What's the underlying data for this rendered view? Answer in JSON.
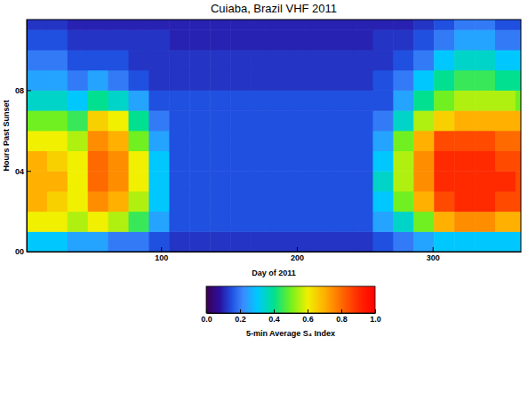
{
  "chart_data": {
    "type": "heatmap",
    "title": "Cuiaba, Brazil VHF 2011",
    "x_label": "Day of 2011",
    "y_label": "Hours Past Sunset",
    "xlim": [
      1,
      365
    ],
    "xticks": [
      100,
      200,
      300
    ],
    "ylim": [
      0,
      11.5
    ],
    "yticks": [
      {
        "value": 0,
        "label": "00"
      },
      {
        "value": 4,
        "label": "04"
      },
      {
        "value": 8,
        "label": "08"
      }
    ],
    "x_bins": [
      1,
      16,
      31,
      46,
      61,
      76,
      91,
      106,
      121,
      136,
      151,
      166,
      181,
      196,
      211,
      226,
      241,
      256,
      271,
      286,
      301,
      316,
      331,
      346,
      361,
      365
    ],
    "y_bins": [
      0,
      1,
      2,
      3,
      4,
      5,
      6,
      7,
      8,
      9,
      10,
      11,
      11.5
    ],
    "cells": [
      [
        0.3,
        0.3,
        0.25,
        0.25,
        0.2,
        0.2,
        0.15,
        0.12,
        0.12,
        0.12,
        0.12,
        0.12,
        0.12,
        0.12,
        0.12,
        0.12,
        0.12,
        0.15,
        0.2,
        0.25,
        0.3,
        0.3,
        0.3,
        0.3,
        0.3
      ],
      [
        0.6,
        0.6,
        0.55,
        0.6,
        0.55,
        0.45,
        0.25,
        0.15,
        0.15,
        0.15,
        0.15,
        0.15,
        0.15,
        0.15,
        0.15,
        0.15,
        0.15,
        0.25,
        0.35,
        0.5,
        0.7,
        0.75,
        0.75,
        0.7,
        0.7
      ],
      [
        0.7,
        0.65,
        0.6,
        0.75,
        0.7,
        0.55,
        0.3,
        0.15,
        0.15,
        0.15,
        0.15,
        0.15,
        0.15,
        0.15,
        0.15,
        0.15,
        0.15,
        0.3,
        0.5,
        0.7,
        0.85,
        0.9,
        0.9,
        0.85,
        0.85
      ],
      [
        0.7,
        0.7,
        0.6,
        0.8,
        0.75,
        0.6,
        0.3,
        0.15,
        0.15,
        0.15,
        0.15,
        0.15,
        0.15,
        0.15,
        0.15,
        0.15,
        0.15,
        0.35,
        0.55,
        0.75,
        0.9,
        0.9,
        0.9,
        0.9,
        0.85
      ],
      [
        0.7,
        0.65,
        0.6,
        0.8,
        0.75,
        0.6,
        0.3,
        0.15,
        0.15,
        0.15,
        0.15,
        0.15,
        0.15,
        0.15,
        0.15,
        0.15,
        0.15,
        0.3,
        0.55,
        0.75,
        0.9,
        0.9,
        0.9,
        0.85,
        0.85
      ],
      [
        0.6,
        0.6,
        0.55,
        0.75,
        0.7,
        0.5,
        0.25,
        0.15,
        0.15,
        0.15,
        0.15,
        0.15,
        0.15,
        0.15,
        0.15,
        0.15,
        0.15,
        0.25,
        0.5,
        0.7,
        0.85,
        0.85,
        0.85,
        0.8,
        0.8
      ],
      [
        0.5,
        0.5,
        0.45,
        0.65,
        0.6,
        0.4,
        0.2,
        0.15,
        0.15,
        0.15,
        0.15,
        0.15,
        0.15,
        0.15,
        0.15,
        0.15,
        0.15,
        0.2,
        0.35,
        0.55,
        0.65,
        0.7,
        0.7,
        0.7,
        0.7
      ],
      [
        0.35,
        0.35,
        0.3,
        0.4,
        0.35,
        0.25,
        0.15,
        0.15,
        0.15,
        0.15,
        0.15,
        0.15,
        0.15,
        0.15,
        0.15,
        0.15,
        0.15,
        0.15,
        0.25,
        0.4,
        0.5,
        0.55,
        0.55,
        0.55,
        0.5
      ],
      [
        0.25,
        0.25,
        0.2,
        0.25,
        0.2,
        0.15,
        0.12,
        0.12,
        0.12,
        0.12,
        0.12,
        0.12,
        0.12,
        0.12,
        0.12,
        0.12,
        0.12,
        0.15,
        0.2,
        0.3,
        0.4,
        0.45,
        0.45,
        0.4,
        0.4
      ],
      [
        0.2,
        0.2,
        0.15,
        0.15,
        0.15,
        0.12,
        0.12,
        0.12,
        0.12,
        0.12,
        0.12,
        0.12,
        0.12,
        0.12,
        0.12,
        0.12,
        0.12,
        0.12,
        0.15,
        0.2,
        0.3,
        0.35,
        0.35,
        0.3,
        0.3
      ],
      [
        0.15,
        0.15,
        0.12,
        0.12,
        0.12,
        0.12,
        0.12,
        0.1,
        0.1,
        0.1,
        0.1,
        0.1,
        0.1,
        0.1,
        0.1,
        0.1,
        0.1,
        0.12,
        0.12,
        0.15,
        0.2,
        0.25,
        0.25,
        0.2,
        0.2
      ],
      [
        0.12,
        0.12,
        0.1,
        0.1,
        0.1,
        0.1,
        0.1,
        0.1,
        0.1,
        0.1,
        0.1,
        0.1,
        0.1,
        0.1,
        0.1,
        0.1,
        0.1,
        0.1,
        0.1,
        0.12,
        0.15,
        0.2,
        0.2,
        0.15,
        0.15
      ]
    ],
    "colorbar": {
      "label": "5-min Average S₄ Index",
      "range": [
        0,
        1
      ],
      "ticks": [
        {
          "value": 0,
          "label": "0.0"
        },
        {
          "value": 0.2,
          "label": "0.2"
        },
        {
          "value": 0.4,
          "label": "0.4"
        },
        {
          "value": 0.6,
          "label": "0.6"
        },
        {
          "value": 0.8,
          "label": "0.8"
        },
        {
          "value": 1,
          "label": "1.0"
        }
      ]
    }
  }
}
